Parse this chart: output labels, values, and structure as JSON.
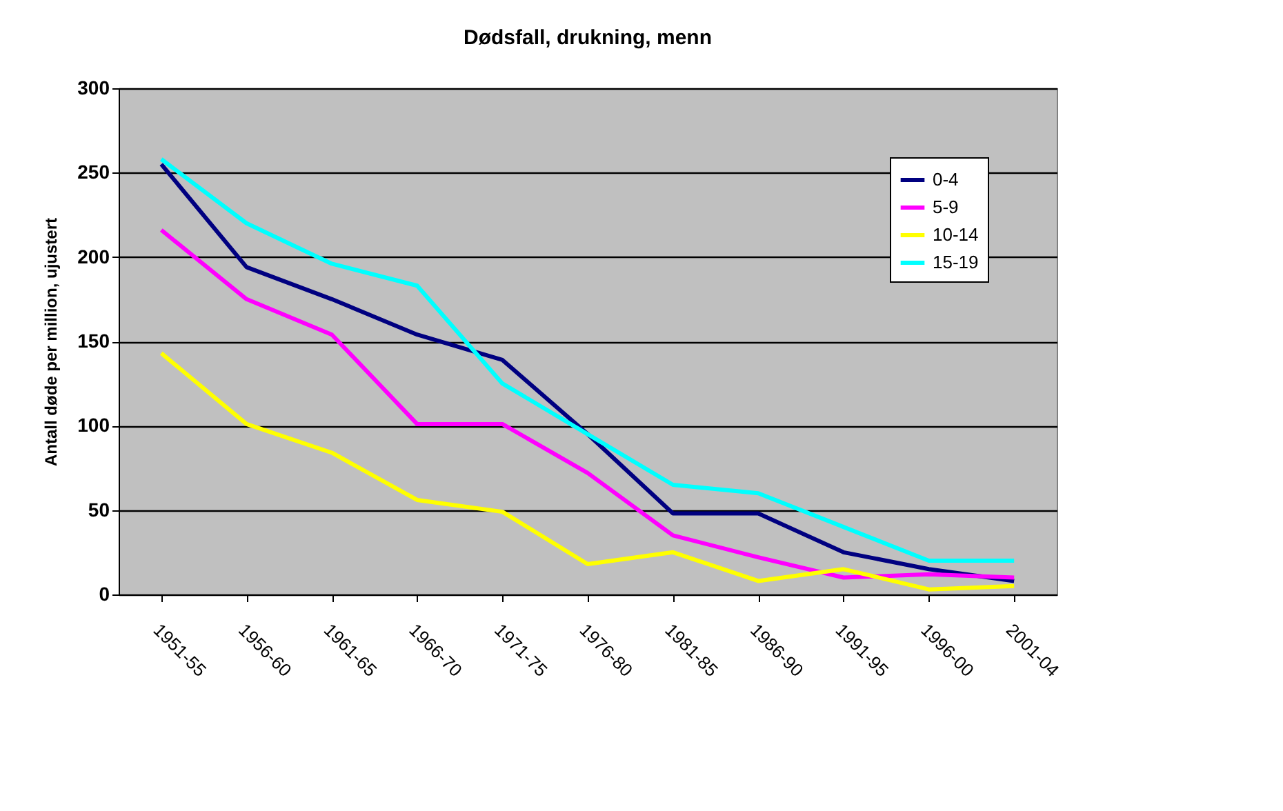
{
  "chart_data": {
    "type": "line",
    "title": "Dødsfall, drukning, menn",
    "ylabel": "Antall døde per million, ujustert",
    "categories": [
      "1951-55",
      "1956-60",
      "1961-65",
      "1966-70",
      "1971-75",
      "1976-80",
      "1981-85",
      "1986-90",
      "1991-95",
      "1996-00",
      "2001-04"
    ],
    "series": [
      {
        "name": "0-4",
        "color": "#000080",
        "values": [
          255,
          194,
          175,
          154,
          139,
          95,
          48,
          48,
          25,
          15,
          8
        ]
      },
      {
        "name": "5-9",
        "color": "#ff00ff",
        "values": [
          216,
          175,
          154,
          101,
          101,
          72,
          35,
          22,
          10,
          12,
          10
        ]
      },
      {
        "name": "10-14",
        "color": "#ffff00",
        "values": [
          143,
          101,
          84,
          56,
          49,
          18,
          25,
          8,
          15,
          3,
          5
        ]
      },
      {
        "name": "15-19",
        "color": "#00ffff",
        "values": [
          258,
          220,
          196,
          183,
          125,
          95,
          65,
          60,
          40,
          20,
          20
        ]
      }
    ],
    "ylim": [
      0,
      300
    ],
    "yticks": [
      0,
      50,
      100,
      150,
      200,
      250,
      300
    ],
    "grid": "y",
    "legend": "top right"
  }
}
